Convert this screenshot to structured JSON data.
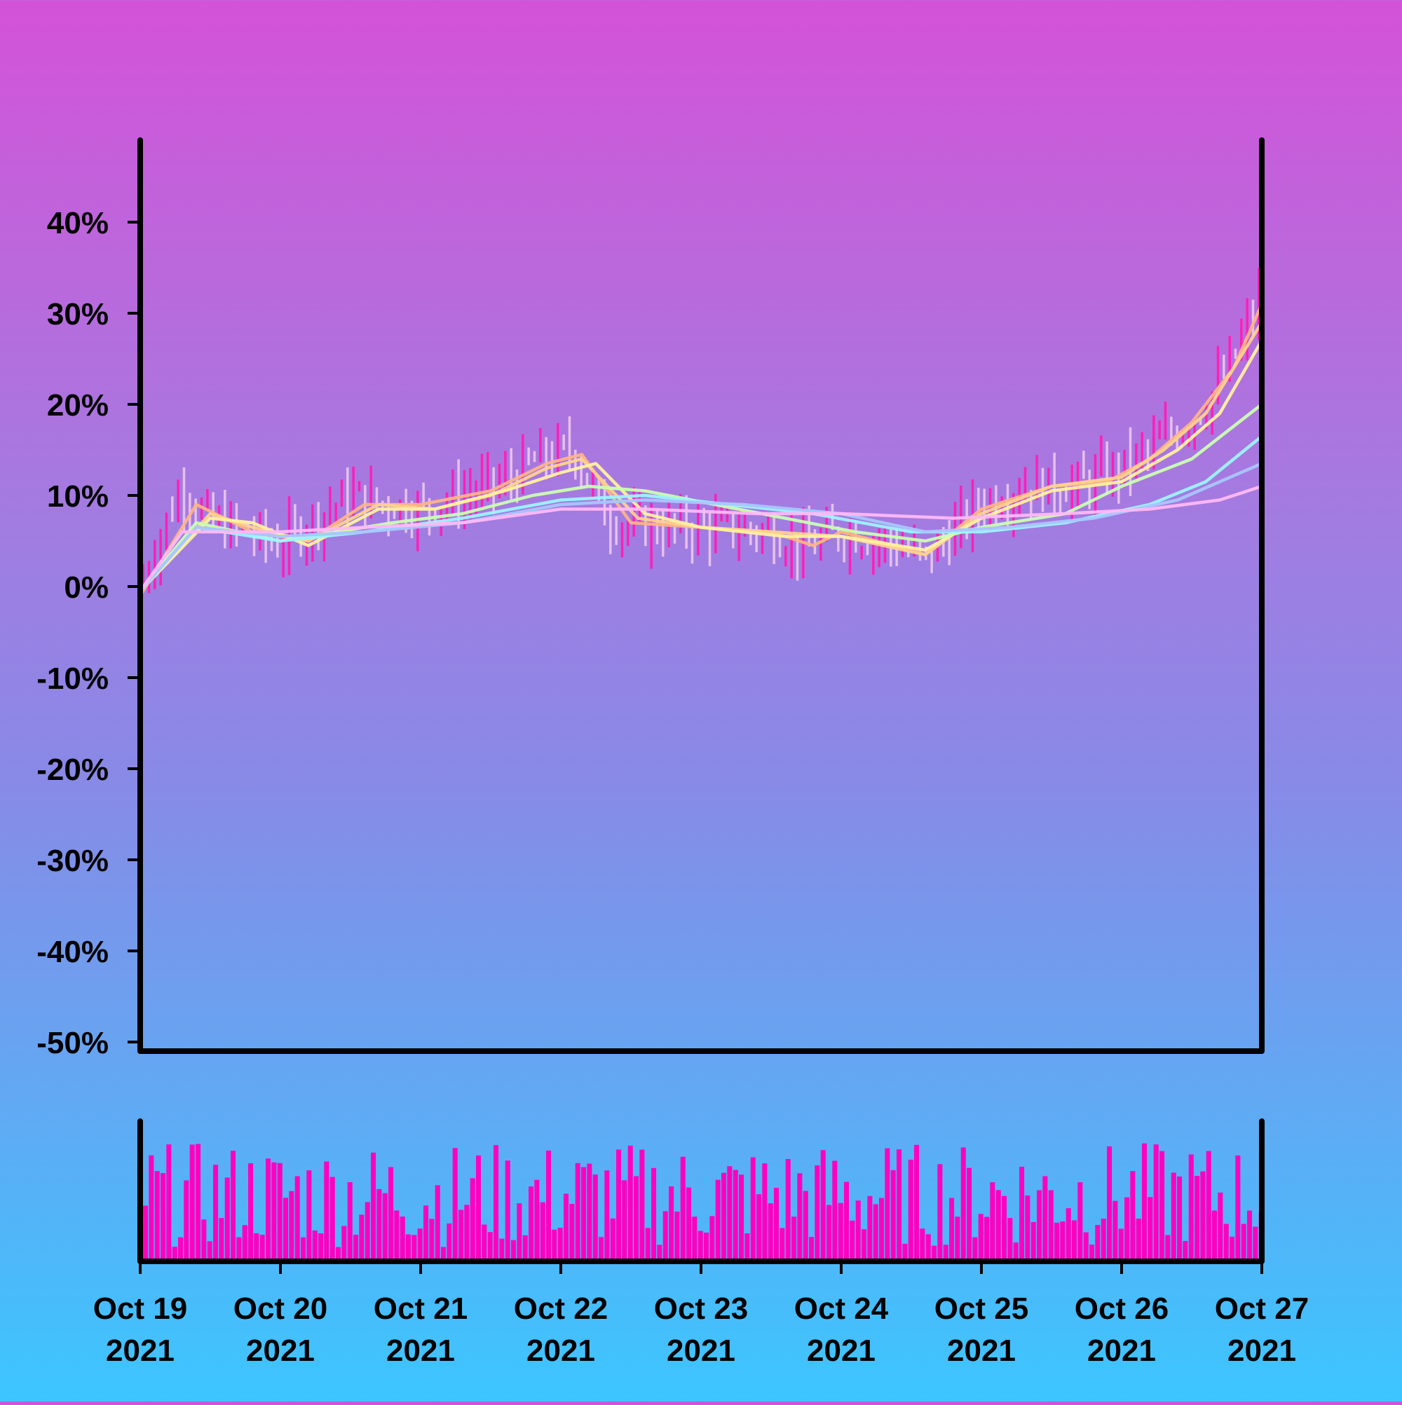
{
  "chart_data": [
    {
      "type": "candlestick",
      "x_axis": {
        "tick_labels": [
          [
            "Oct 19",
            "2021"
          ],
          [
            "Oct 20",
            "2021"
          ],
          [
            "Oct 21",
            "2021"
          ],
          [
            "Oct 22",
            "2021"
          ],
          [
            "Oct 23",
            "2021"
          ],
          [
            "Oct 24",
            "2021"
          ],
          [
            "Oct 25",
            "2021"
          ],
          [
            "Oct 26",
            "2021"
          ],
          [
            "Oct 27",
            "2021"
          ]
        ],
        "range": [
          "2021-10-19",
          "2021-10-27"
        ]
      },
      "y_axis": {
        "tick_values": [
          40,
          30,
          20,
          10,
          0,
          -10,
          -20,
          -30,
          -40,
          -50
        ],
        "tick_labels": [
          "40%",
          "30%",
          "20%",
          "10%",
          "0%",
          "-10%",
          "-20%",
          "-30%",
          "-40%",
          "-50%"
        ],
        "ylim": [
          -51,
          49
        ],
        "unit": "%"
      },
      "grid": false,
      "colors": {
        "up": "#ff1fb8",
        "down": "#e8c0f0",
        "ma_lines": [
          "#ffb386",
          "#ffd28e",
          "#fff1a0",
          "#c9ffb0",
          "#9cf4ff",
          "#a9c6ff",
          "#ffb9f4"
        ]
      },
      "price_path_percent": [
        {
          "t": 0.0,
          "v": 0
        },
        {
          "t": 0.15,
          "v": 6
        },
        {
          "t": 0.3,
          "v": 11
        },
        {
          "t": 0.5,
          "v": 7
        },
        {
          "t": 0.75,
          "v": 6
        },
        {
          "t": 1.0,
          "v": 4.5
        },
        {
          "t": 1.25,
          "v": 7.5
        },
        {
          "t": 1.5,
          "v": 10
        },
        {
          "t": 1.75,
          "v": 9
        },
        {
          "t": 2.0,
          "v": 8.5
        },
        {
          "t": 2.3,
          "v": 10
        },
        {
          "t": 2.6,
          "v": 11.5
        },
        {
          "t": 2.85,
          "v": 14
        },
        {
          "t": 3.1,
          "v": 15
        },
        {
          "t": 3.3,
          "v": 8
        },
        {
          "t": 3.5,
          "v": 6.5
        },
        {
          "t": 4.0,
          "v": 6.5
        },
        {
          "t": 4.5,
          "v": 6
        },
        {
          "t": 4.75,
          "v": 4
        },
        {
          "t": 5.0,
          "v": 6
        },
        {
          "t": 5.4,
          "v": 4.5
        },
        {
          "t": 5.6,
          "v": 3
        },
        {
          "t": 5.8,
          "v": 6
        },
        {
          "t": 6.0,
          "v": 9
        },
        {
          "t": 6.3,
          "v": 11
        },
        {
          "t": 6.7,
          "v": 11
        },
        {
          "t": 7.0,
          "v": 13
        },
        {
          "t": 7.3,
          "v": 16
        },
        {
          "t": 7.6,
          "v": 20
        },
        {
          "t": 7.8,
          "v": 25
        },
        {
          "t": 8.0,
          "v": 32
        }
      ],
      "moving_averages": [
        {
          "points": [
            [
              0.0,
              -1
            ],
            [
              0.4,
              9
            ],
            [
              0.8,
              6
            ],
            [
              1.2,
              5
            ],
            [
              1.6,
              9
            ],
            [
              2.0,
              9
            ],
            [
              2.5,
              10.5
            ],
            [
              2.9,
              13.5
            ],
            [
              3.15,
              14.5
            ],
            [
              3.5,
              7
            ],
            [
              4.0,
              6.5
            ],
            [
              4.5,
              6
            ],
            [
              4.8,
              4.5
            ],
            [
              5.0,
              6
            ],
            [
              5.5,
              4
            ],
            [
              5.6,
              3.5
            ],
            [
              6.0,
              8.5
            ],
            [
              6.5,
              11
            ],
            [
              6.9,
              11.5
            ],
            [
              7.2,
              14
            ],
            [
              7.5,
              18
            ],
            [
              7.8,
              24
            ],
            [
              8.0,
              31
            ]
          ]
        },
        {
          "points": [
            [
              0.0,
              -0.5
            ],
            [
              0.5,
              8
            ],
            [
              0.8,
              6.5
            ],
            [
              1.2,
              5
            ],
            [
              1.7,
              9
            ],
            [
              2.1,
              8.5
            ],
            [
              2.5,
              10
            ],
            [
              2.9,
              13
            ],
            [
              3.15,
              14
            ],
            [
              3.55,
              7.5
            ],
            [
              4.0,
              6.5
            ],
            [
              4.5,
              6
            ],
            [
              5.0,
              5.5
            ],
            [
              5.6,
              3.5
            ],
            [
              6.0,
              8
            ],
            [
              6.5,
              11
            ],
            [
              7.0,
              12
            ],
            [
              7.3,
              15
            ],
            [
              7.6,
              19
            ],
            [
              8.0,
              29
            ]
          ]
        },
        {
          "points": [
            [
              0.0,
              -0.5
            ],
            [
              0.5,
              7.5
            ],
            [
              0.8,
              7
            ],
            [
              1.2,
              4.5
            ],
            [
              1.7,
              8.5
            ],
            [
              2.1,
              8.5
            ],
            [
              2.6,
              10.5
            ],
            [
              3.0,
              12.5
            ],
            [
              3.25,
              13.5
            ],
            [
              3.6,
              8
            ],
            [
              4.0,
              6.5
            ],
            [
              4.6,
              5.5
            ],
            [
              5.0,
              5.5
            ],
            [
              5.6,
              4
            ],
            [
              6.0,
              7.5
            ],
            [
              6.5,
              10.5
            ],
            [
              7.0,
              11.5
            ],
            [
              7.4,
              15
            ],
            [
              7.7,
              19
            ],
            [
              8.0,
              27
            ]
          ]
        },
        {
          "points": [
            [
              0.0,
              -0.5
            ],
            [
              0.4,
              7
            ],
            [
              1.0,
              5
            ],
            [
              1.4,
              6
            ],
            [
              1.8,
              7
            ],
            [
              2.3,
              8
            ],
            [
              2.8,
              10
            ],
            [
              3.2,
              11
            ],
            [
              3.6,
              10.5
            ],
            [
              4.1,
              9
            ],
            [
              4.6,
              7.5
            ],
            [
              5.1,
              6
            ],
            [
              5.6,
              5
            ],
            [
              6.0,
              6.5
            ],
            [
              6.6,
              8
            ],
            [
              7.0,
              11
            ],
            [
              7.5,
              14
            ],
            [
              8.0,
              20
            ]
          ]
        },
        {
          "points": [
            [
              0.0,
              -0.5
            ],
            [
              0.4,
              6.5
            ],
            [
              1.0,
              5
            ],
            [
              1.6,
              6
            ],
            [
              2.3,
              7.5
            ],
            [
              3.0,
              9.5
            ],
            [
              3.6,
              10
            ],
            [
              4.2,
              9
            ],
            [
              4.8,
              8
            ],
            [
              5.5,
              6
            ],
            [
              6.0,
              6
            ],
            [
              6.6,
              7
            ],
            [
              7.2,
              9
            ],
            [
              7.6,
              11.5
            ],
            [
              8.0,
              16.5
            ]
          ]
        },
        {
          "points": [
            [
              0.0,
              -0.5
            ],
            [
              0.4,
              6.5
            ],
            [
              1.0,
              5.5
            ],
            [
              1.6,
              6
            ],
            [
              2.3,
              7
            ],
            [
              3.0,
              9
            ],
            [
              3.6,
              9.5
            ],
            [
              4.3,
              9
            ],
            [
              5.0,
              8
            ],
            [
              5.6,
              6
            ],
            [
              6.2,
              6.5
            ],
            [
              6.8,
              7.5
            ],
            [
              7.4,
              9.5
            ],
            [
              8.0,
              13.5
            ]
          ]
        },
        {
          "points": [
            [
              0.0,
              -0.5
            ],
            [
              0.3,
              6
            ],
            [
              1.0,
              6
            ],
            [
              1.6,
              6.5
            ],
            [
              2.3,
              7
            ],
            [
              3.0,
              8.5
            ],
            [
              3.6,
              8.5
            ],
            [
              4.4,
              8
            ],
            [
              5.0,
              8
            ],
            [
              5.8,
              7.5
            ],
            [
              6.6,
              8
            ],
            [
              7.2,
              8.5
            ],
            [
              7.7,
              9.5
            ],
            [
              8.0,
              11
            ]
          ]
        }
      ]
    },
    {
      "type": "bar",
      "description_role": "volume",
      "color": "#ff00c0",
      "x_range": [
        "2021-10-19",
        "2021-10-27"
      ],
      "count": 192
    }
  ]
}
